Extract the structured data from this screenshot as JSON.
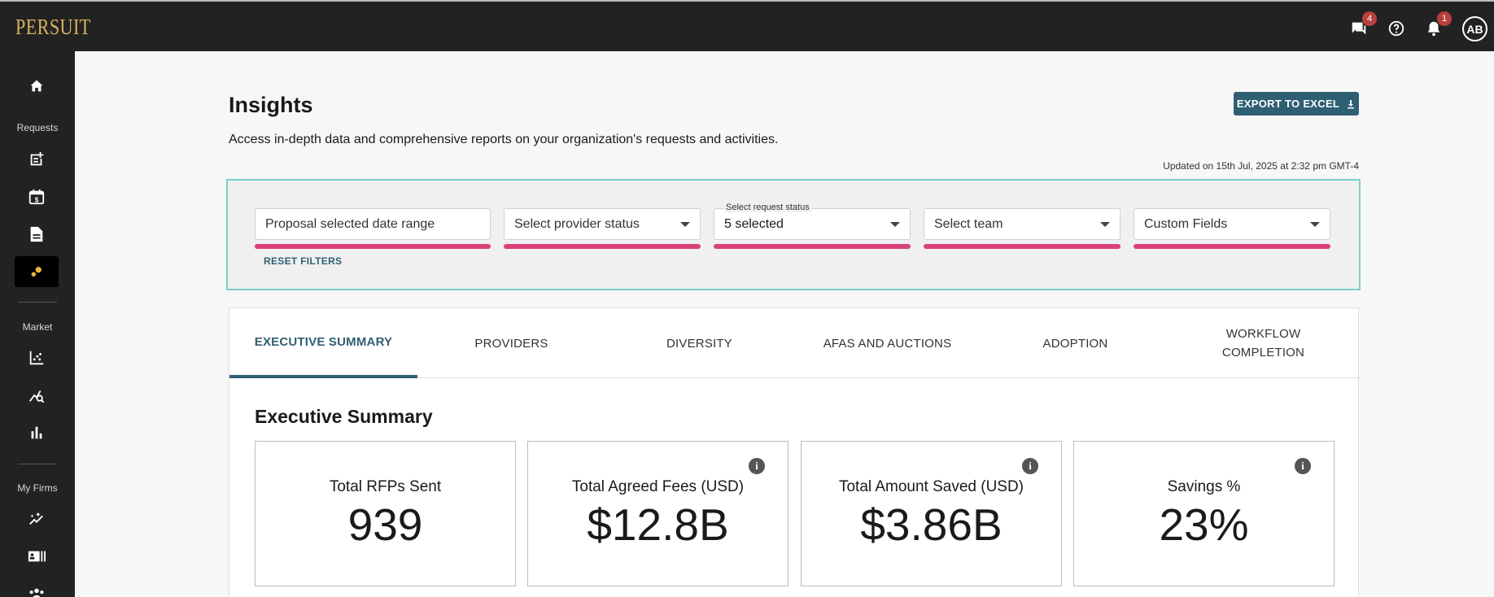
{
  "app": {
    "logo": "PERSUIT",
    "messages_badge": "4",
    "notifications_badge": "1",
    "avatar_initials": "AB"
  },
  "sidebar": {
    "sections": [
      {
        "label": "Requests"
      },
      {
        "label": "Market"
      },
      {
        "label": "My Firms"
      }
    ],
    "icons": [
      "home-icon",
      "new-request-icon",
      "fee-calendar-icon",
      "document-icon",
      "insights-icon",
      "market-chart-icon",
      "market-search-icon",
      "bar-chart-icon",
      "sparkle-chart-icon",
      "firm-directory-icon",
      "team-icon"
    ]
  },
  "page": {
    "title": "Insights",
    "description": "Access in-depth data and comprehensive reports on your organization's requests and activities.",
    "export_label": "EXPORT TO EXCEL",
    "updated": "Updated on 15th Jul, 2025 at 2:32 pm GMT-4"
  },
  "filters": {
    "date_range": {
      "placeholder": "Proposal selected date range"
    },
    "provider_status": {
      "placeholder": "Select provider status"
    },
    "request_status": {
      "label": "Select request status",
      "value": "5 selected"
    },
    "team": {
      "placeholder": "Select team"
    },
    "custom_fields": {
      "placeholder": "Custom Fields"
    },
    "reset_label": "RESET FILTERS"
  },
  "tabs": [
    {
      "label": "EXECUTIVE SUMMARY",
      "active": true
    },
    {
      "label": "PROVIDERS"
    },
    {
      "label": "DIVERSITY"
    },
    {
      "label": "AFAS AND AUCTIONS"
    },
    {
      "label": "ADOPTION"
    },
    {
      "label": "WORKFLOW COMPLETION"
    }
  ],
  "summary": {
    "title": "Executive Summary",
    "stats": [
      {
        "label": "Total RFPs Sent",
        "value": "939"
      },
      {
        "label": "Total Agreed Fees (USD)",
        "value": "$12.8B"
      },
      {
        "label": "Total Amount Saved (USD)",
        "value": "$3.86B"
      },
      {
        "label": "Savings %",
        "value": "23%"
      }
    ]
  }
}
